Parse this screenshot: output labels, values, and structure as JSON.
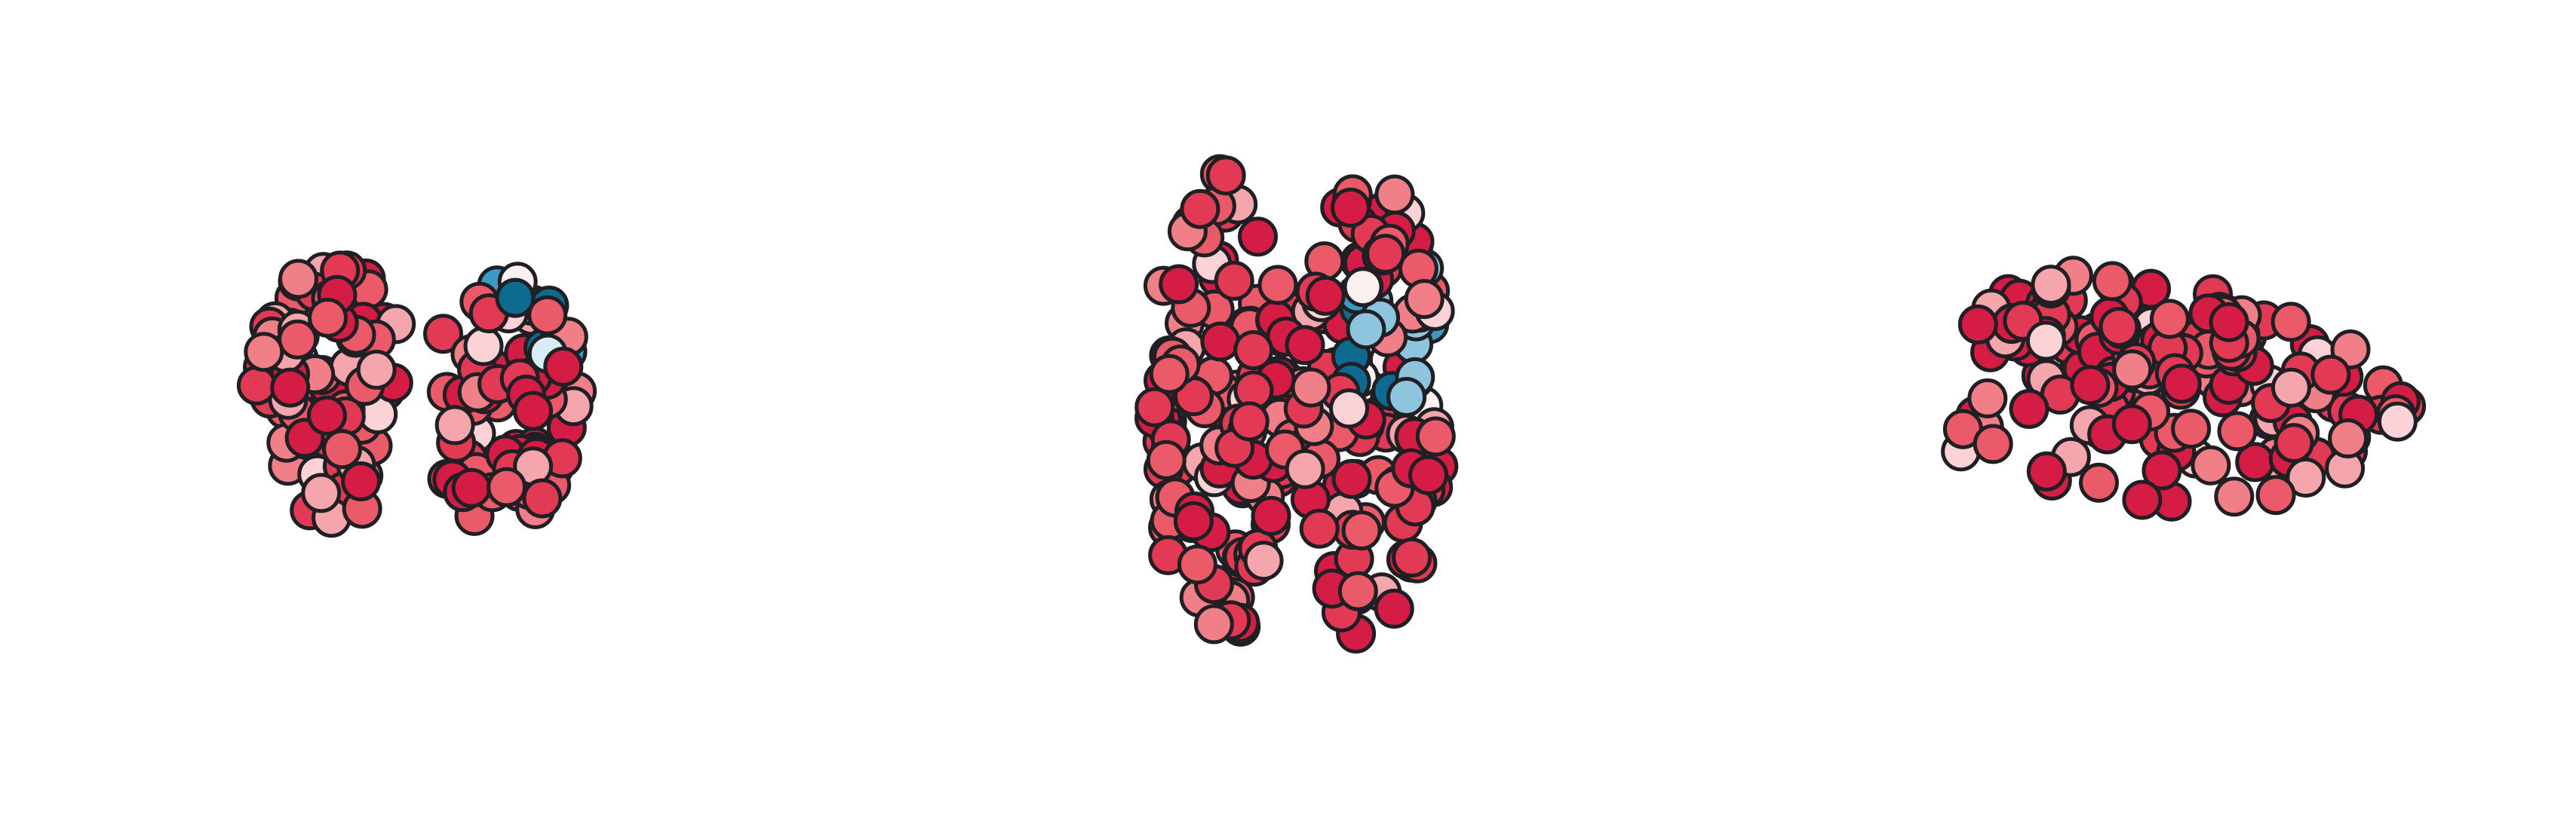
{
  "marker_colors": [
    "#d41c45",
    "#e23a55",
    "#ea5a68",
    "#f07f88",
    "#f5a6ad",
    "#fbd3d6",
    "#fdf0f0",
    "#d8ecf5",
    "#8ec4de",
    "#3a9bc5",
    "#0f6a8f"
  ],
  "marker_edge_color": "#1f1f24"
}
